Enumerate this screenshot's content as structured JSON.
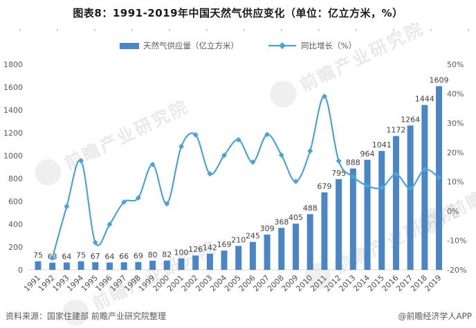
{
  "title": "图表8：1991-2019年中国天然气供应变化（单位：亿立方米，%）",
  "legend": {
    "bars_label": "天然气供应量（亿立方米）",
    "line_label": "同比增长（%）"
  },
  "chart_data": {
    "type": "combo-bar-line",
    "title": "图表8：1991-2019年中国天然气供应变化（单位：亿立方米，%）",
    "categories": [
      1991,
      1992,
      1993,
      1994,
      1995,
      1996,
      1997,
      1998,
      1999,
      2000,
      2001,
      2002,
      2003,
      2004,
      2005,
      2006,
      2007,
      2008,
      2009,
      2010,
      2011,
      2012,
      2013,
      2014,
      2015,
      2016,
      2017,
      2018,
      2019
    ],
    "series": [
      {
        "name": "天然气供应量（亿立方米）",
        "type": "bar",
        "axis": "left",
        "color": "#4a86c6",
        "values": [
          75,
          63,
          64,
          75,
          67,
          64,
          66,
          69,
          80,
          82,
          100,
          126,
          142,
          169,
          210,
          245,
          309,
          368,
          405,
          488,
          679,
          795,
          888,
          964,
          1041,
          1172,
          1264,
          1444,
          1609
        ]
      },
      {
        "name": "同比增长（%）",
        "type": "line",
        "axis": "right",
        "color": "#4da2d4",
        "values": [
          null,
          -16.0,
          1.6,
          17.2,
          -10.7,
          -4.5,
          3.1,
          4.5,
          15.9,
          2.5,
          22.0,
          26.0,
          12.7,
          19.0,
          24.3,
          16.7,
          26.1,
          19.1,
          10.1,
          20.5,
          39.1,
          17.1,
          11.7,
          8.6,
          8.0,
          12.6,
          7.8,
          14.2,
          11.4
        ]
      }
    ],
    "left_axis": {
      "min": 0,
      "max": 1800,
      "step": 200,
      "suffix": ""
    },
    "right_axis": {
      "min": -20,
      "max": 50,
      "step": 10,
      "suffix": "%"
    },
    "grid": false,
    "legend_position": "top",
    "bar_labels_visible": true
  },
  "footer": {
    "source": "资料来源：国家住建部 前瞻产业研究院整理",
    "credit": "@前瞻经济学人APP"
  },
  "watermark": {
    "text": "前瞻产业研究院"
  },
  "colors": {
    "bar": "#4a86c6",
    "line": "#4da2d4",
    "axis_text": "#595959",
    "bar_label_text": "#404040",
    "year_text": "#4d4d4d",
    "baseline": "#d9d9d9",
    "title_text": "#1a1a1a",
    "footer_text": "#595959"
  }
}
